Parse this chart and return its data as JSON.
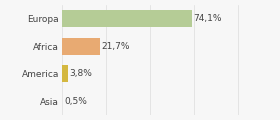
{
  "categories": [
    "Europa",
    "Africa",
    "America",
    "Asia"
  ],
  "values": [
    74.1,
    21.7,
    3.8,
    0.5
  ],
  "labels": [
    "74,1%",
    "21,7%",
    "3,8%",
    "0,5%"
  ],
  "bar_colors": [
    "#b5cc96",
    "#e8aa72",
    "#d4b840",
    "#c8d8ef"
  ],
  "background_color": "#f7f7f7",
  "xlim": [
    0,
    105
  ],
  "label_fontsize": 6.5,
  "tick_fontsize": 6.5,
  "bar_height": 0.62
}
